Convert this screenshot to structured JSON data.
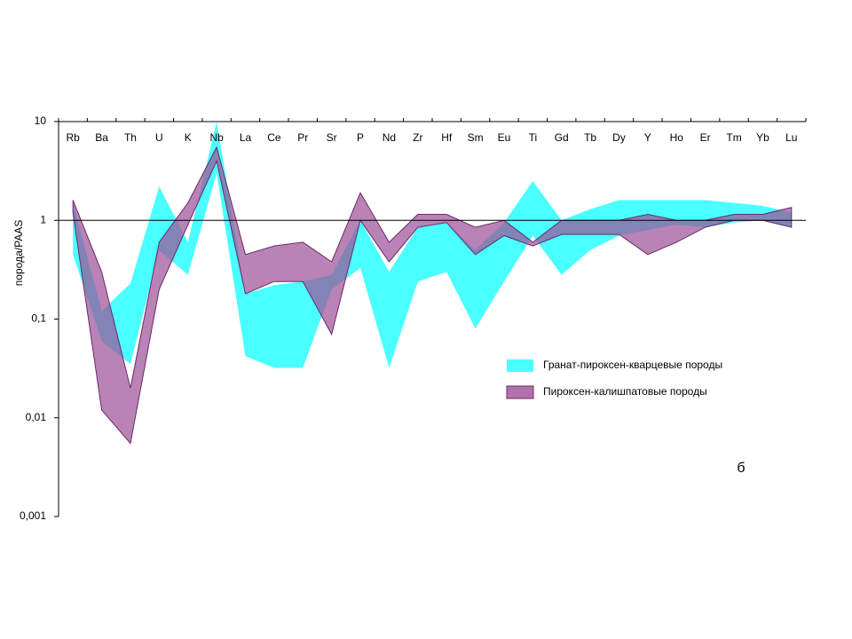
{
  "chart_data": {
    "type": "range-area",
    "y_label": "порода/PAAS",
    "annotation": "б",
    "log_y": true,
    "reference_line": 1,
    "categories": [
      "Rb",
      "Ba",
      "Th",
      "U",
      "K",
      "Nb",
      "La",
      "Ce",
      "Pr",
      "Sr",
      "P",
      "Nd",
      "Zr",
      "Hf",
      "Sm",
      "Eu",
      "Ti",
      "Gd",
      "Tb",
      "Dy",
      "Y",
      "Ho",
      "Er",
      "Tm",
      "Yb",
      "Lu"
    ],
    "series": [
      {
        "name": "Гранат-пироксен-кварцевые породы",
        "color": "#40ffff",
        "upper": [
          1.5,
          0.12,
          0.23,
          2.2,
          0.6,
          10,
          0.18,
          0.22,
          0.24,
          0.28,
          1.0,
          0.3,
          0.85,
          0.95,
          0.5,
          0.95,
          2.5,
          1.0,
          1.3,
          1.6,
          1.6,
          1.6,
          1.6,
          1.5,
          1.4,
          1.2
        ],
        "lower": [
          0.45,
          0.06,
          0.035,
          0.5,
          0.28,
          3,
          0.042,
          0.032,
          0.032,
          0.2,
          0.33,
          0.032,
          0.24,
          0.3,
          0.08,
          0.24,
          0.7,
          0.28,
          0.5,
          0.7,
          0.8,
          0.9,
          0.85,
          0.95,
          1.0,
          0.85
        ]
      },
      {
        "name": "Пироксен-калишпатовые породы",
        "color": "#9b4f96",
        "upper": [
          1.6,
          0.3,
          0.02,
          0.6,
          1.5,
          5.5,
          0.45,
          0.55,
          0.6,
          0.38,
          1.9,
          0.6,
          1.15,
          1.15,
          0.85,
          1.0,
          0.6,
          1.0,
          1.0,
          1.0,
          1.15,
          1.0,
          1.0,
          1.15,
          1.15,
          1.35
        ],
        "lower": [
          1.2,
          0.012,
          0.0055,
          0.2,
          0.9,
          4,
          0.18,
          0.24,
          0.24,
          0.07,
          1.0,
          0.38,
          0.85,
          0.95,
          0.45,
          0.7,
          0.55,
          0.72,
          0.72,
          0.72,
          0.45,
          0.6,
          0.85,
          1.0,
          1.0,
          0.85
        ]
      }
    ],
    "ylim": [
      0.001,
      10
    ],
    "yticks": [
      {
        "value": 0.001,
        "label": "0,001"
      },
      {
        "value": 0.01,
        "label": "0,01"
      },
      {
        "value": 0.1,
        "label": "0,1"
      },
      1,
      10
    ]
  }
}
